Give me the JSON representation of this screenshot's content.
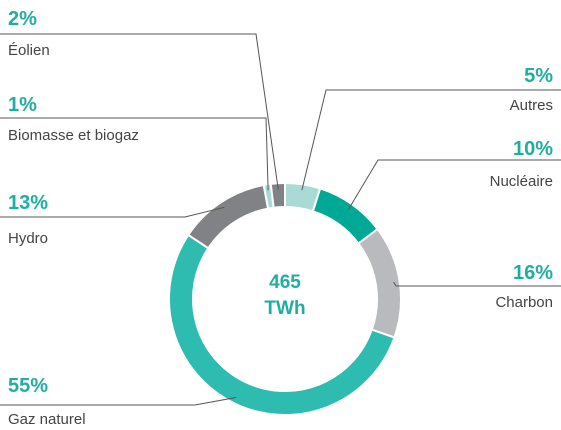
{
  "chart_data": {
    "type": "donut",
    "categories": [
      "Autres",
      "Nucléaire",
      "Charbon",
      "Gaz naturel",
      "Hydro",
      "Biomasse et biogaz",
      "Éolien"
    ],
    "values": [
      5,
      10,
      16,
      55,
      13,
      1,
      2
    ],
    "value_labels": [
      "5%",
      "10%",
      "16%",
      "55%",
      "13%",
      "1%",
      "2%"
    ],
    "colors": [
      "#a9dad6",
      "#00a896",
      "#b9babd",
      "#2ebcb0",
      "#808285",
      "#a9dad6",
      "#808285"
    ],
    "center_label": [
      "465",
      "TWh"
    ]
  }
}
